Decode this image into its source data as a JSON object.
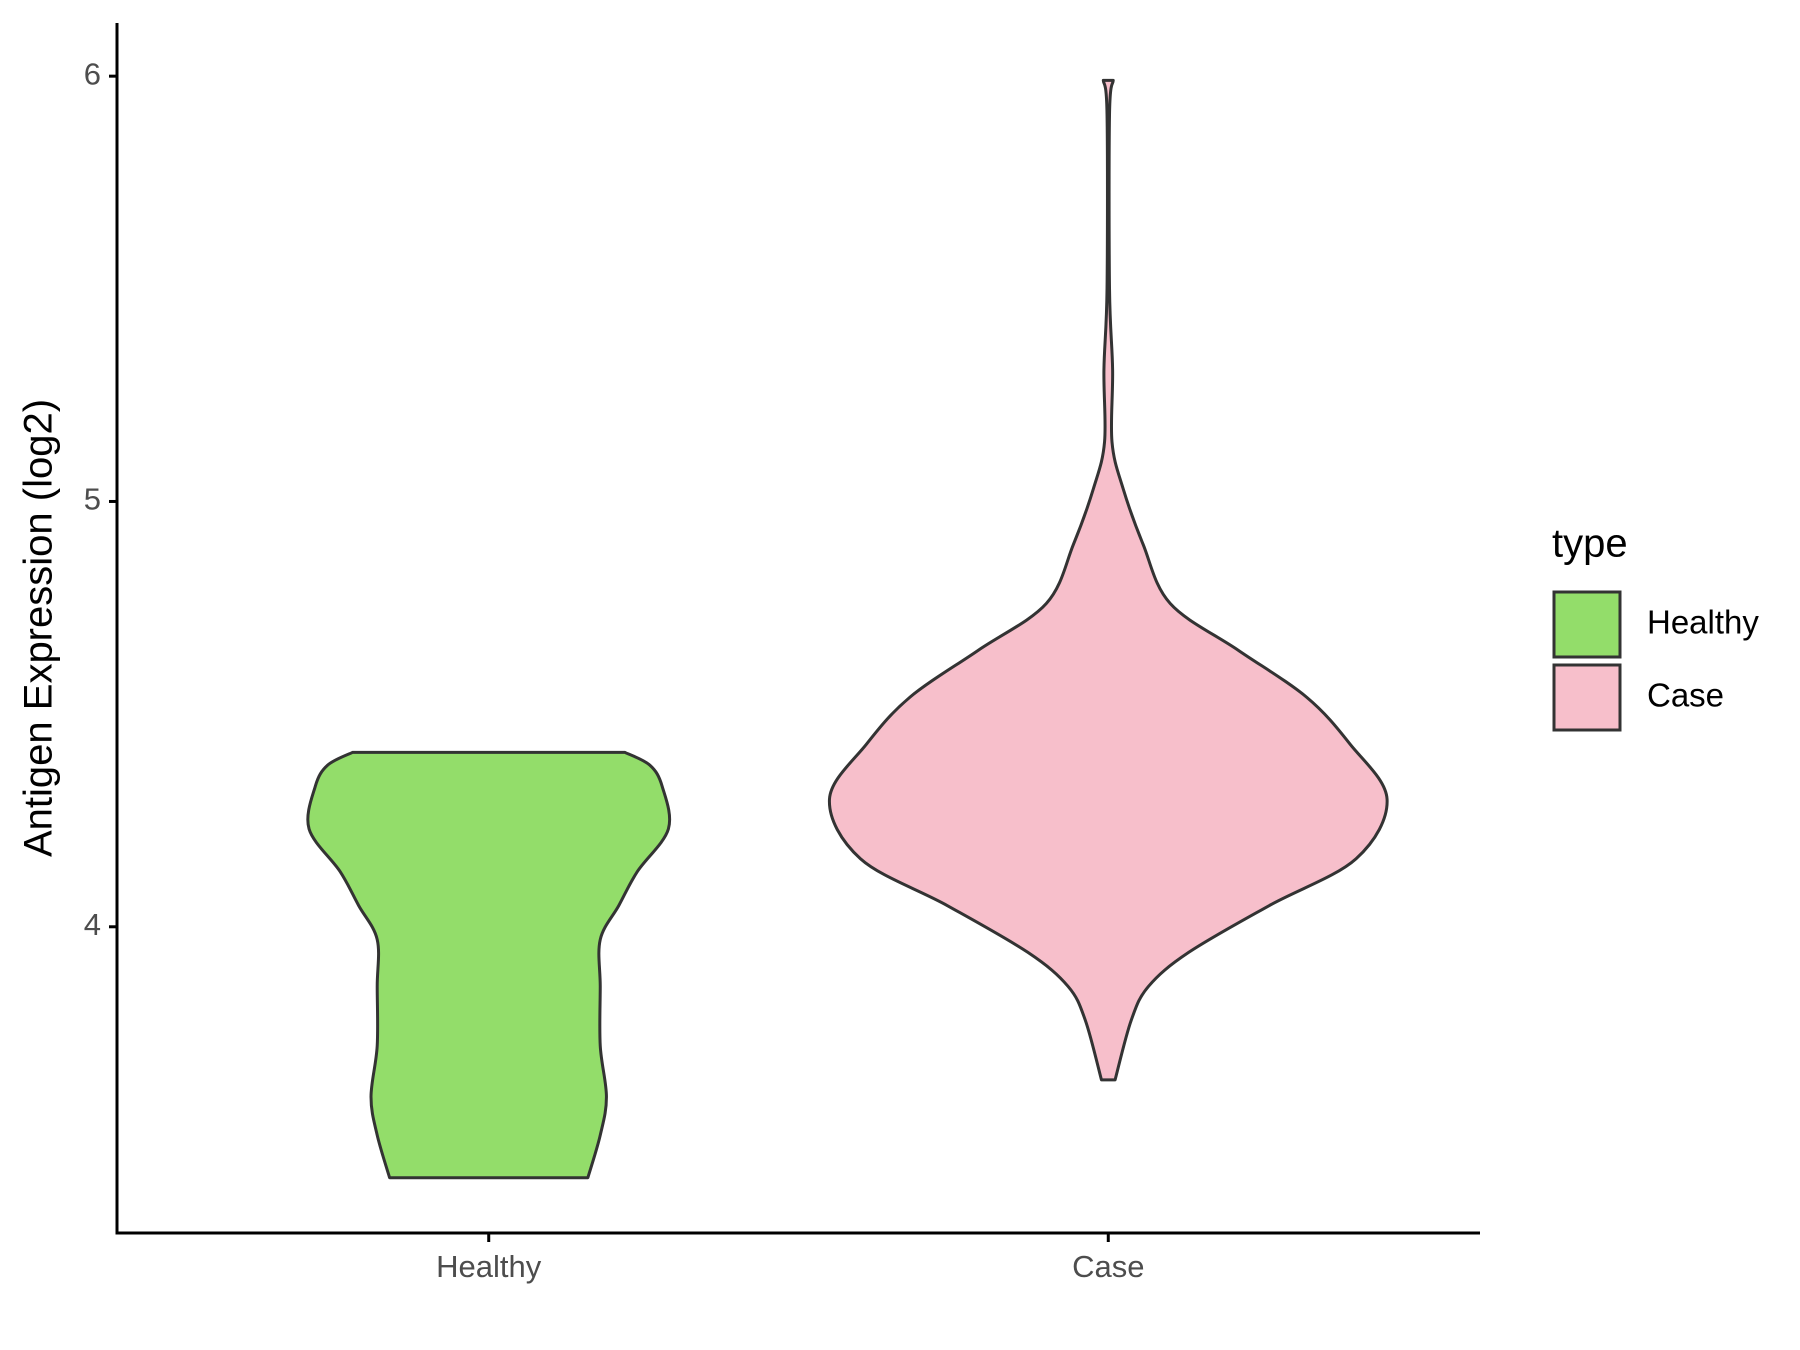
{
  "chart_data": {
    "type": "violin",
    "y_label": "Antigen Expression (log2)",
    "categories": [
      "Healthy",
      "Case"
    ],
    "ylim": [
      3.28,
      6.125
    ],
    "yticks": [
      4,
      5,
      6
    ],
    "legend_title": "type",
    "legend_position": "right",
    "series": [
      {
        "name": "Healthy",
        "color": "#93dd6a",
        "y": [
          4.41,
          4.38,
          4.33,
          4.23,
          4.13,
          4.05,
          3.97,
          3.86,
          3.72,
          3.6,
          3.51,
          3.41
        ],
        "widths": [
          0.22,
          0.26,
          0.28,
          0.29,
          0.24,
          0.21,
          0.18,
          0.18,
          0.18,
          0.19,
          0.18,
          0.16
        ]
      },
      {
        "name": "Case",
        "color": "#f7bfcb",
        "y": [
          5.99,
          5.91,
          5.5,
          5.31,
          5.14,
          5.03,
          4.9,
          4.76,
          4.65,
          4.54,
          4.43,
          4.3,
          4.16,
          4.05,
          3.94,
          3.86,
          3.78,
          3.64
        ],
        "widths": [
          0.008,
          0.002,
          0.002,
          0.007,
          0.006,
          0.024,
          0.056,
          0.1,
          0.21,
          0.32,
          0.39,
          0.45,
          0.4,
          0.26,
          0.13,
          0.065,
          0.037,
          0.011
        ]
      }
    ]
  }
}
